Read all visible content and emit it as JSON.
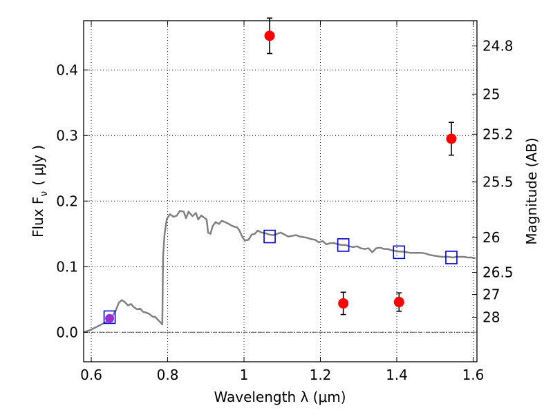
{
  "chart_data": {
    "type": "scatter",
    "xlabel": "Wavelength  λ (μm)",
    "ylabel": "Flux  F",
    "ylabel_sub": "ν",
    "ylabel_unit": "( μJy )",
    "ylabel_right": "Magnitude (AB)",
    "xlim": [
      0.58,
      1.61
    ],
    "ylim": [
      -0.045,
      0.475
    ],
    "grid": "dotted",
    "x_ticks": [
      "0.6",
      "0.8",
      "1",
      "1.2",
      "1.4",
      "1.6"
    ],
    "y_ticks": [
      "0.0",
      "0.1",
      "0.2",
      "0.3",
      "0.4"
    ],
    "right_ticks": [
      {
        "label": "24.8",
        "mag": 24.8
      },
      {
        "label": "25",
        "mag": 25
      },
      {
        "label": "25.2",
        "mag": 25.2
      },
      {
        "label": "25.5",
        "mag": 25.5
      },
      {
        "label": "26",
        "mag": 26
      },
      {
        "label": "26.5",
        "mag": 26.5
      },
      {
        "label": "27",
        "mag": 27
      },
      {
        "label": "28",
        "mag": 28
      }
    ],
    "observed_points": [
      {
        "x": 0.648,
        "y": 0.021,
        "err": 0.004
      },
      {
        "x": 1.067,
        "y": 0.452,
        "err": 0.027
      },
      {
        "x": 1.26,
        "y": 0.044,
        "err": 0.017
      },
      {
        "x": 1.406,
        "y": 0.046,
        "err": 0.014
      },
      {
        "x": 1.543,
        "y": 0.295,
        "err": 0.025
      }
    ],
    "model_points": [
      {
        "x": 0.648,
        "y": 0.023
      },
      {
        "x": 1.067,
        "y": 0.146
      },
      {
        "x": 1.26,
        "y": 0.133
      },
      {
        "x": 1.406,
        "y": 0.122
      },
      {
        "x": 1.543,
        "y": 0.114
      }
    ],
    "model_spectrum": [
      [
        0.58,
        0.0
      ],
      [
        0.6,
        0.004
      ],
      [
        0.62,
        0.01
      ],
      [
        0.64,
        0.016
      ],
      [
        0.65,
        0.02
      ],
      [
        0.656,
        0.025
      ],
      [
        0.664,
        0.033
      ],
      [
        0.672,
        0.045
      ],
      [
        0.68,
        0.049
      ],
      [
        0.688,
        0.046
      ],
      [
        0.696,
        0.041
      ],
      [
        0.704,
        0.043
      ],
      [
        0.712,
        0.038
      ],
      [
        0.72,
        0.035
      ],
      [
        0.728,
        0.036
      ],
      [
        0.736,
        0.031
      ],
      [
        0.744,
        0.03
      ],
      [
        0.752,
        0.028
      ],
      [
        0.76,
        0.024
      ],
      [
        0.768,
        0.023
      ],
      [
        0.776,
        0.018
      ],
      [
        0.783,
        0.014
      ],
      [
        0.786,
        0.012
      ],
      [
        0.788,
        0.115
      ],
      [
        0.792,
        0.15
      ],
      [
        0.798,
        0.173
      ],
      [
        0.806,
        0.18
      ],
      [
        0.816,
        0.176
      ],
      [
        0.824,
        0.178
      ],
      [
        0.832,
        0.185
      ],
      [
        0.842,
        0.184
      ],
      [
        0.848,
        0.174
      ],
      [
        0.855,
        0.184
      ],
      [
        0.865,
        0.177
      ],
      [
        0.874,
        0.182
      ],
      [
        0.88,
        0.172
      ],
      [
        0.888,
        0.178
      ],
      [
        0.895,
        0.175
      ],
      [
        0.902,
        0.172
      ],
      [
        0.906,
        0.152
      ],
      [
        0.912,
        0.15
      ],
      [
        0.918,
        0.162
      ],
      [
        0.926,
        0.168
      ],
      [
        0.934,
        0.165
      ],
      [
        0.942,
        0.17
      ],
      [
        0.95,
        0.168
      ],
      [
        0.958,
        0.166
      ],
      [
        0.966,
        0.163
      ],
      [
        0.974,
        0.161
      ],
      [
        0.982,
        0.16
      ],
      [
        0.988,
        0.155
      ],
      [
        0.996,
        0.145
      ],
      [
        1.002,
        0.14
      ],
      [
        1.012,
        0.141
      ],
      [
        1.02,
        0.149
      ],
      [
        1.028,
        0.15
      ],
      [
        1.036,
        0.155
      ],
      [
        1.046,
        0.152
      ],
      [
        1.056,
        0.151
      ],
      [
        1.066,
        0.149
      ],
      [
        1.076,
        0.148
      ],
      [
        1.086,
        0.15
      ],
      [
        1.096,
        0.152
      ],
      [
        1.106,
        0.149
      ],
      [
        1.116,
        0.146
      ],
      [
        1.126,
        0.147
      ],
      [
        1.136,
        0.148
      ],
      [
        1.146,
        0.146
      ],
      [
        1.156,
        0.145
      ],
      [
        1.166,
        0.144
      ],
      [
        1.176,
        0.142
      ],
      [
        1.186,
        0.141
      ],
      [
        1.196,
        0.137
      ],
      [
        1.206,
        0.139
      ],
      [
        1.216,
        0.134
      ],
      [
        1.226,
        0.136
      ],
      [
        1.236,
        0.136
      ],
      [
        1.246,
        0.134
      ],
      [
        1.256,
        0.133
      ],
      [
        1.266,
        0.133
      ],
      [
        1.276,
        0.131
      ],
      [
        1.286,
        0.13
      ],
      [
        1.296,
        0.131
      ],
      [
        1.306,
        0.128
      ],
      [
        1.316,
        0.127
      ],
      [
        1.326,
        0.128
      ],
      [
        1.336,
        0.122
      ],
      [
        1.346,
        0.128
      ],
      [
        1.356,
        0.129
      ],
      [
        1.366,
        0.127
      ],
      [
        1.376,
        0.127
      ],
      [
        1.386,
        0.125
      ],
      [
        1.396,
        0.124
      ],
      [
        1.406,
        0.123
      ],
      [
        1.416,
        0.123
      ],
      [
        1.426,
        0.122
      ],
      [
        1.436,
        0.121
      ],
      [
        1.446,
        0.121
      ],
      [
        1.456,
        0.121
      ],
      [
        1.466,
        0.121
      ],
      [
        1.476,
        0.12
      ],
      [
        1.486,
        0.118
      ],
      [
        1.496,
        0.117
      ],
      [
        1.506,
        0.116
      ],
      [
        1.516,
        0.115
      ],
      [
        1.526,
        0.115
      ],
      [
        1.536,
        0.115
      ],
      [
        1.546,
        0.114
      ],
      [
        1.556,
        0.115
      ],
      [
        1.566,
        0.115
      ],
      [
        1.576,
        0.115
      ],
      [
        1.586,
        0.114
      ],
      [
        1.596,
        0.114
      ],
      [
        1.606,
        0.113
      ]
    ],
    "colors": {
      "observed": "#ff0000",
      "model_points": "#0000cc",
      "model_spectrum": "#808080",
      "zero_line": "#555555",
      "purple_marker": "#9932cc"
    }
  }
}
